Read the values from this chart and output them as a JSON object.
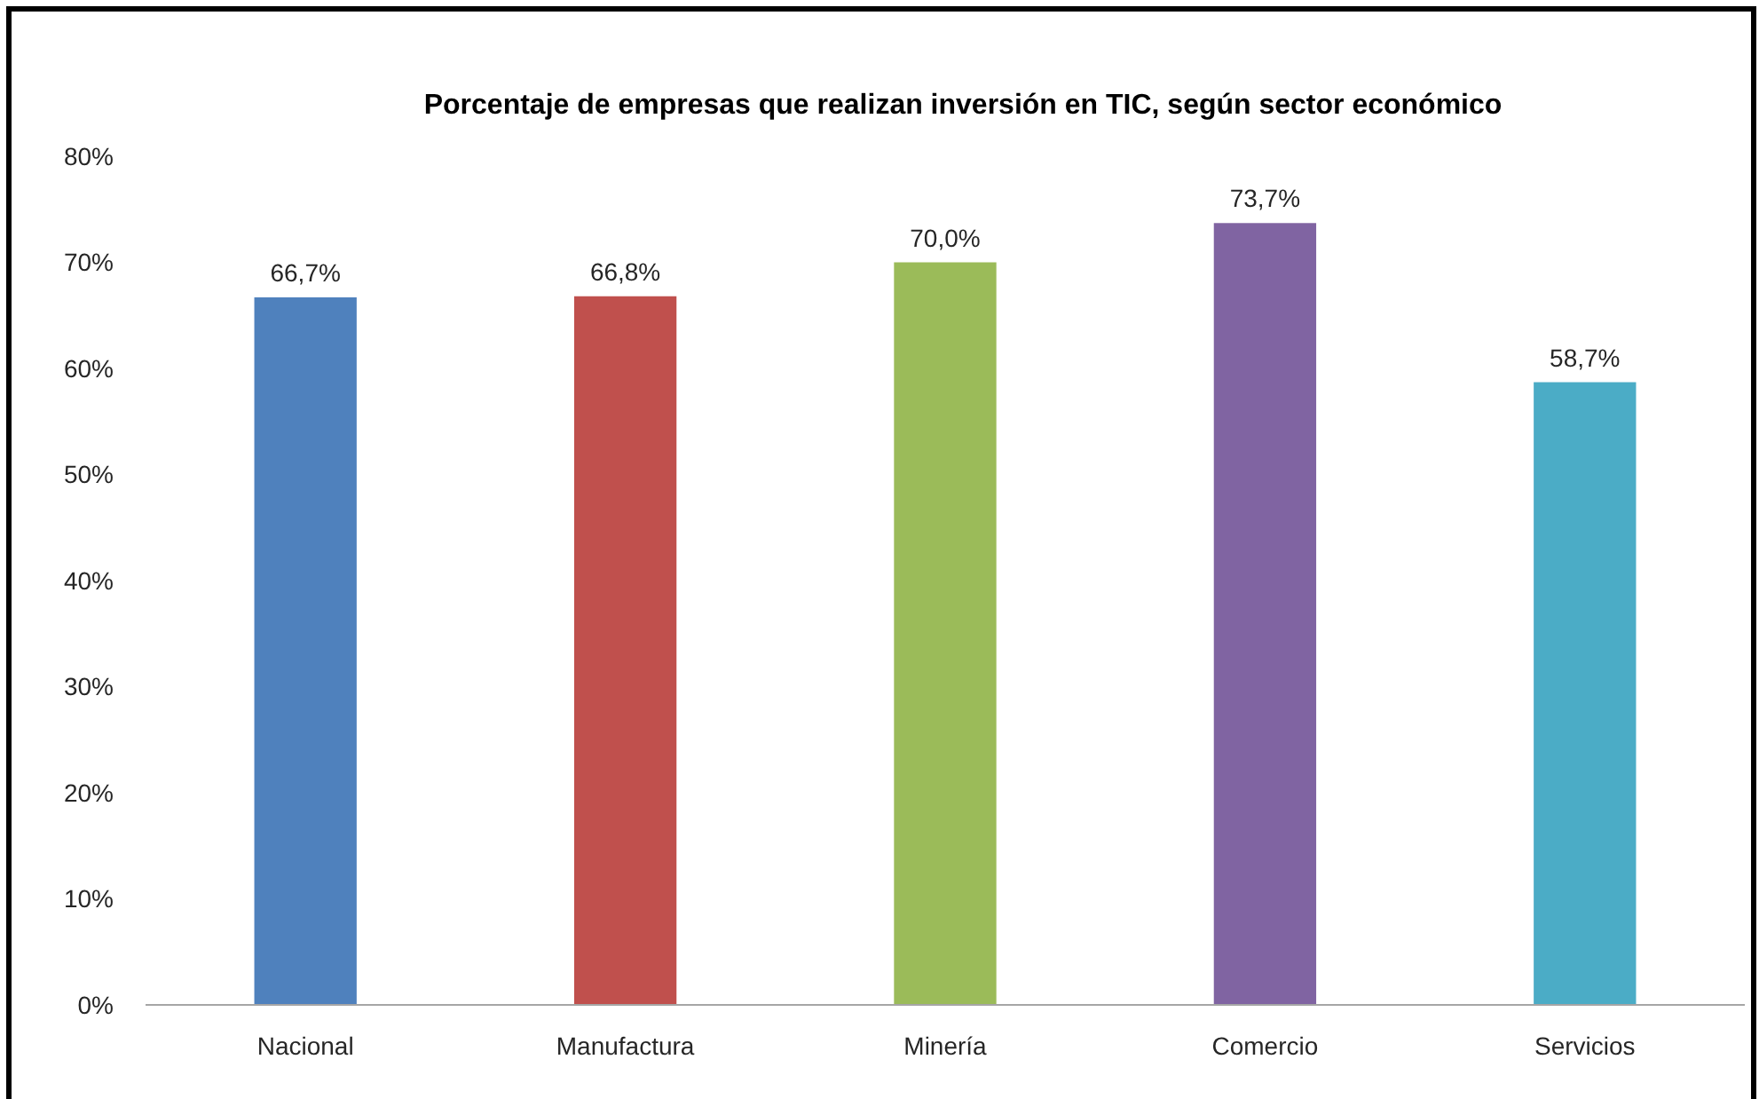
{
  "chart_data": {
    "type": "bar",
    "title": "Porcentaje de empresas que realizan inversión en TIC, según sector económico",
    "categories": [
      "Nacional",
      "Manufactura",
      "Minería",
      "Comercio",
      "Servicios"
    ],
    "values": [
      66.7,
      66.8,
      70.0,
      73.7,
      58.7
    ],
    "value_labels": [
      "66,7%",
      "66,8%",
      "70,0%",
      "73,7%",
      "58,7%"
    ],
    "colors": [
      "#4f81bd",
      "#c0504d",
      "#9bbb59",
      "#8064a2",
      "#4bacc6"
    ],
    "ylim": [
      0,
      80
    ],
    "yticks": [
      {
        "value": 0,
        "label": "0%"
      },
      {
        "value": 10,
        "label": "10%"
      },
      {
        "value": 20,
        "label": "20%"
      },
      {
        "value": 30,
        "label": "30%"
      },
      {
        "value": 40,
        "label": "40%"
      },
      {
        "value": 50,
        "label": "50%"
      },
      {
        "value": 60,
        "label": "60%"
      },
      {
        "value": 70,
        "label": "70%"
      },
      {
        "value": 80,
        "label": "80%"
      }
    ],
    "grid": false
  }
}
